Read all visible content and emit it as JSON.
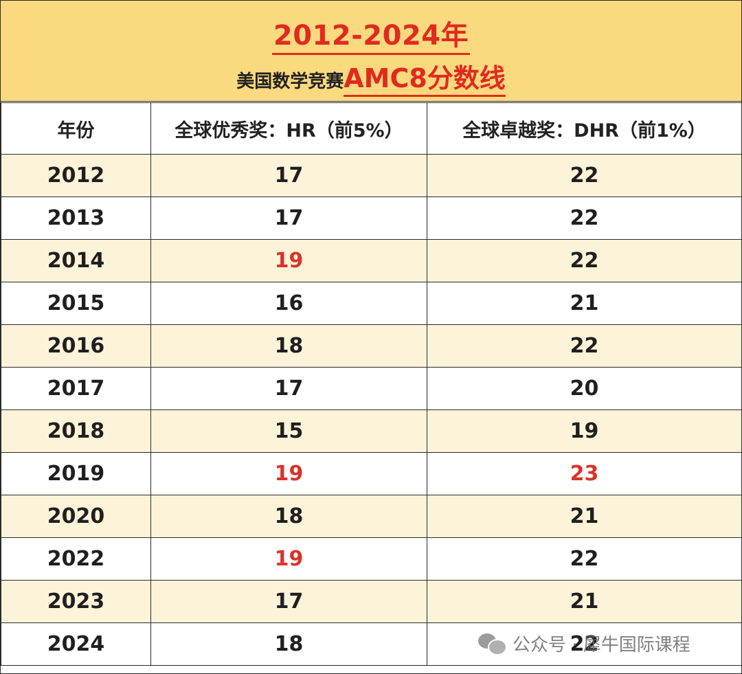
{
  "header": {
    "title_line1": "2012-2024年",
    "title_prefix": "美国数学竞赛",
    "title_highlight": "AMC8分数线"
  },
  "table": {
    "columns": [
      "年份",
      "全球优秀奖：HR（前5%）",
      "全球卓越奖：DHR（前1%）"
    ],
    "rows": [
      {
        "year": "2012",
        "hr": "17",
        "dhr": "22",
        "hr_red": false,
        "dhr_red": false
      },
      {
        "year": "2013",
        "hr": "17",
        "dhr": "22",
        "hr_red": false,
        "dhr_red": false
      },
      {
        "year": "2014",
        "hr": "19",
        "dhr": "22",
        "hr_red": true,
        "dhr_red": false
      },
      {
        "year": "2015",
        "hr": "16",
        "dhr": "21",
        "hr_red": false,
        "dhr_red": false
      },
      {
        "year": "2016",
        "hr": "18",
        "dhr": "22",
        "hr_red": false,
        "dhr_red": false
      },
      {
        "year": "2017",
        "hr": "17",
        "dhr": "20",
        "hr_red": false,
        "dhr_red": false
      },
      {
        "year": "2018",
        "hr": "15",
        "dhr": "19",
        "hr_red": false,
        "dhr_red": false
      },
      {
        "year": "2019",
        "hr": "19",
        "dhr": "23",
        "hr_red": true,
        "dhr_red": true
      },
      {
        "year": "2020",
        "hr": "18",
        "dhr": "21",
        "hr_red": false,
        "dhr_red": false
      },
      {
        "year": "2022",
        "hr": "19",
        "dhr": "22",
        "hr_red": true,
        "dhr_red": false
      },
      {
        "year": "2023",
        "hr": "17",
        "dhr": "21",
        "hr_red": false,
        "dhr_red": false
      },
      {
        "year": "2024",
        "hr": "18",
        "dhr": "22",
        "hr_red": false,
        "dhr_red": false
      }
    ]
  },
  "watermark": {
    "icon": "wechat-icon",
    "text": "公众号 · 犀牛国际课程"
  },
  "colors": {
    "banner": "#fbd97e",
    "highlight_red": "#e12a1f",
    "alt_row": "#fdf3d8"
  }
}
